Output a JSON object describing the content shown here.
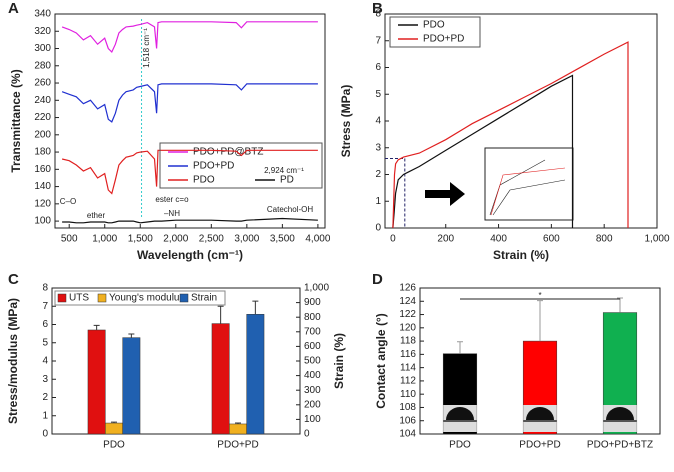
{
  "chart_data": [
    {
      "type": "line",
      "label": "A",
      "xlabel": "Wavelength (cm⁻¹)",
      "ylabel": "Transmittance (%)",
      "x": [
        400,
        500,
        600,
        700,
        800,
        900,
        1000,
        1050,
        1100,
        1150,
        1200,
        1250,
        1300,
        1400,
        1450,
        1500,
        1600,
        1700,
        1730,
        1750,
        1800,
        2000,
        2500,
        2850,
        2924,
        3000,
        3500,
        4000
      ],
      "series": [
        {
          "name": "PDO+PD@BTZ",
          "color": "#e020e0",
          "values": [
            325,
            322,
            318,
            310,
            315,
            305,
            312,
            300,
            296,
            305,
            318,
            322,
            325,
            326,
            327,
            328,
            330,
            325,
            300,
            330,
            331,
            331,
            331,
            330,
            324,
            331,
            331,
            331
          ]
        },
        {
          "name": "PDO+PD",
          "color": "#2030d0",
          "values": [
            250,
            247,
            244,
            236,
            240,
            230,
            235,
            218,
            215,
            225,
            240,
            246,
            250,
            252,
            255,
            256,
            258,
            250,
            225,
            258,
            259,
            259,
            259,
            258,
            252,
            259,
            259,
            259
          ]
        },
        {
          "name": "PDO",
          "color": "#e02020",
          "values": [
            172,
            170,
            165,
            158,
            162,
            150,
            155,
            136,
            132,
            148,
            165,
            170,
            174,
            176,
            179,
            180,
            181,
            172,
            140,
            182,
            182,
            182,
            182,
            181,
            176,
            182,
            182,
            182
          ]
        },
        {
          "name": "PD",
          "color": "#111111",
          "values": [
            99,
            99,
            98,
            98,
            99,
            99,
            99,
            98,
            98,
            99,
            100,
            100,
            100,
            100,
            99,
            98,
            99,
            100,
            100,
            100,
            100,
            101,
            101,
            100,
            100,
            101,
            103,
            101
          ]
        }
      ],
      "xlim": [
        300,
        4100
      ],
      "ylim": [
        92,
        340
      ],
      "xticks": [
        500,
        {
          "value": 1000,
          "label": "1,000"
        },
        {
          "value": 1500,
          "label": "1,500"
        },
        {
          "value": 2000,
          "label": "2,000"
        },
        {
          "value": 2500,
          "label": "2,500"
        },
        {
          "value": 3000,
          "label": "3,000"
        },
        {
          "value": 3500,
          "label": "3,500"
        },
        {
          "value": 4000,
          "label": "4,000"
        }
      ],
      "yticks": [
        100,
        120,
        140,
        160,
        180,
        200,
        220,
        240,
        260,
        280,
        300,
        320,
        340
      ],
      "annotations": [
        "1,518 cm⁻¹",
        "2,924 cm⁻¹",
        "C–O",
        "ether",
        "–NH",
        "ester c=o",
        "Catechol-OH"
      ]
    },
    {
      "type": "line",
      "label": "B",
      "xlabel": "Strain (%)",
      "ylabel": "Stress (MPa)",
      "series": [
        {
          "name": "PDO",
          "color": "#111111",
          "x": [
            0,
            5,
            10,
            20,
            40,
            60,
            100,
            200,
            300,
            400,
            500,
            600,
            680,
            680
          ],
          "values": [
            0,
            0.6,
            1.3,
            1.8,
            2.0,
            2.1,
            2.3,
            2.9,
            3.5,
            4.1,
            4.7,
            5.3,
            5.7,
            0
          ]
        },
        {
          "name": "PDO+PD",
          "color": "#e02020",
          "x": [
            0,
            3,
            6,
            10,
            20,
            40,
            100,
            200,
            300,
            400,
            500,
            600,
            700,
            800,
            890,
            890
          ],
          "values": [
            0,
            1.0,
            2.0,
            2.4,
            2.55,
            2.65,
            2.8,
            3.3,
            3.9,
            4.4,
            4.9,
            5.4,
            5.95,
            6.5,
            6.95,
            0
          ]
        }
      ],
      "xlim": [
        -30,
        1000
      ],
      "ylim": [
        0,
        8
      ],
      "xticks": [
        0,
        200,
        400,
        600,
        800,
        {
          "value": 1000,
          "label": "1,000"
        }
      ],
      "yticks": [
        0,
        1,
        2,
        3,
        4,
        5,
        6,
        7,
        8
      ]
    },
    {
      "type": "bar",
      "label": "C",
      "ylabel": "Stress/modulus (MPa)",
      "y2label": "Strain (%)",
      "categories": [
        "PDO",
        "PDO+PD"
      ],
      "series": [
        {
          "name": "UTS",
          "color": "#e01010",
          "values": [
            5.7,
            6.05
          ],
          "errors": [
            0.25,
            0.95
          ]
        },
        {
          "name": "Young's modulus",
          "color": "#f0b020",
          "values": [
            0.6,
            0.55
          ],
          "errors": [
            0.05,
            0.05
          ]
        },
        {
          "name": "Strain",
          "color": "#2060b0",
          "axis": "y2",
          "values": [
            660,
            820
          ],
          "errors": [
            25,
            90
          ]
        }
      ],
      "ylim": [
        0,
        8
      ],
      "yticks": [
        0,
        1,
        2,
        3,
        4,
        5,
        6,
        7,
        8
      ],
      "y2lim": [
        0,
        1000
      ],
      "y2ticks": [
        0,
        100,
        200,
        300,
        400,
        500,
        600,
        700,
        800,
        900,
        {
          "value": 1000,
          "label": "1,000"
        }
      ]
    },
    {
      "type": "bar",
      "label": "D",
      "ylabel": "Contact angle (°)",
      "categories": [
        "PDO",
        "PDO+PD",
        "PDO+PD+BTZ"
      ],
      "values": [
        116.1,
        118,
        122.3
      ],
      "errors": [
        1.8,
        6.1,
        2.2
      ],
      "colors": [
        "#000000",
        "#ff0000",
        "#10b050"
      ],
      "ylim": [
        104,
        126
      ],
      "yticks": [
        104,
        106,
        108,
        110,
        112,
        114,
        116,
        118,
        120,
        122,
        124,
        126
      ],
      "annotations": [
        "*"
      ]
    }
  ]
}
